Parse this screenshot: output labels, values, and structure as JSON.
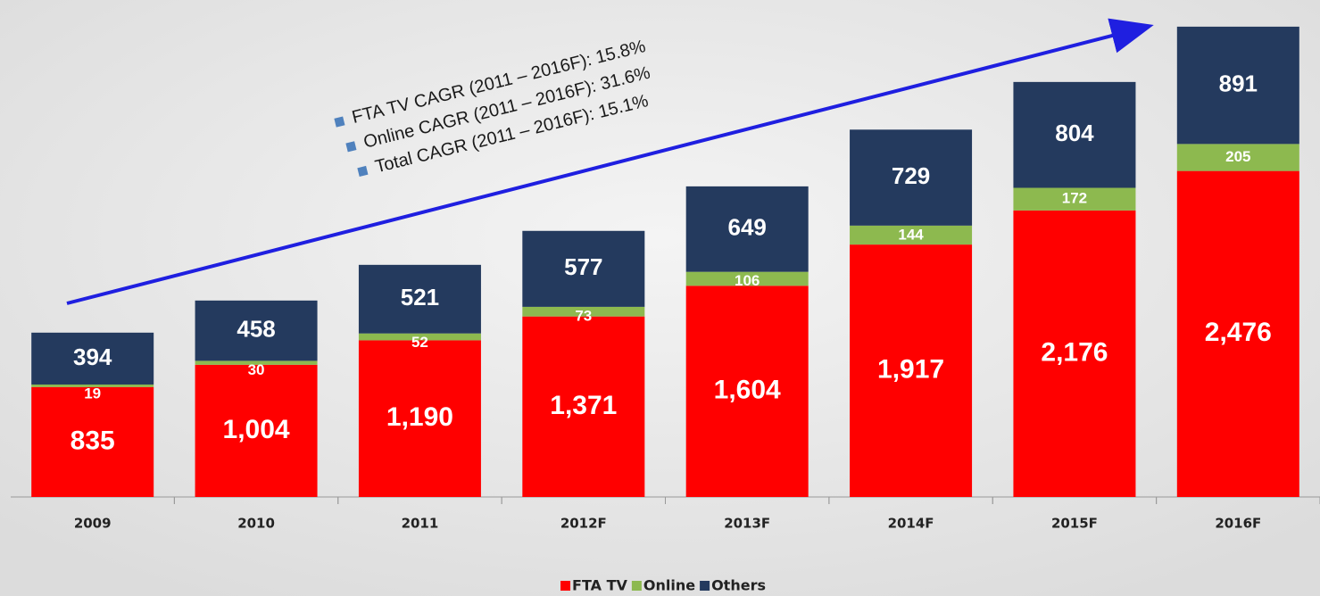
{
  "chart_data": {
    "type": "stacked_bar",
    "categories": [
      "2009",
      "2010",
      "2011",
      "2012F",
      "2013F",
      "2014F",
      "2015F",
      "2016F"
    ],
    "series": [
      {
        "name": "FTA TV",
        "color": "#ff0000",
        "values": [
          835,
          1004,
          1190,
          1371,
          1604,
          1917,
          2176,
          2476
        ],
        "value_labels": [
          "835",
          "1,004",
          "1,190",
          "1,371",
          "1,604",
          "1,917",
          "2,176",
          "2,476"
        ]
      },
      {
        "name": "Online",
        "color": "#8db94f",
        "values": [
          19,
          30,
          52,
          73,
          106,
          144,
          172,
          205
        ]
      },
      {
        "name": "Others",
        "color": "#243a5e",
        "values": [
          394,
          458,
          521,
          577,
          649,
          729,
          804,
          891
        ]
      }
    ],
    "annotations": [
      "FTA TV CAGR (2011 – 2016F): 15.8%",
      "Online CAGR (2011 – 2016F): 31.6%",
      "Total CAGR (2011 – 2016F): 15.1%"
    ],
    "ylim": [
      0,
      3700
    ],
    "legend": "bottom"
  }
}
